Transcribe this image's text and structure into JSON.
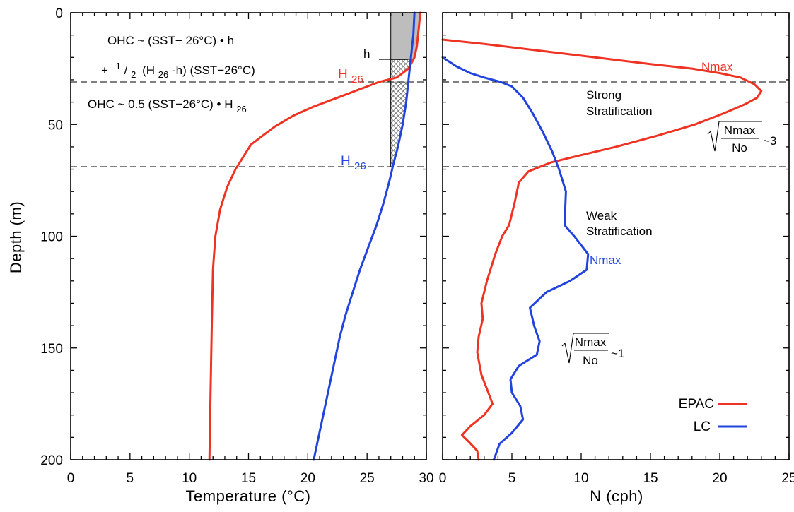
{
  "colors": {
    "epac": "#ee3322",
    "lc": "#2244dd",
    "shade": "#bdbdbd"
  },
  "chart_data": [
    {
      "type": "line",
      "xlabel": "Temperature (°C)",
      "ylabel": "Depth (m)",
      "xlim": [
        0,
        30
      ],
      "ylim": [
        200,
        0
      ],
      "y_inverted": true,
      "xticks": [
        "0",
        "5",
        "10",
        "15",
        "20",
        "25",
        "30"
      ],
      "yticks": [
        "0",
        "50",
        "100",
        "150",
        "200"
      ],
      "reference_depths": [
        31,
        69
      ],
      "h_depth": 21,
      "series": [
        {
          "name": "EPAC",
          "color": "#ee3322",
          "points": [
            [
              29.5,
              0
            ],
            [
              29.4,
              5
            ],
            [
              29.3,
              10
            ],
            [
              29.2,
              15
            ],
            [
              29.0,
              20
            ],
            [
              28.5,
              25
            ],
            [
              27.5,
              29
            ],
            [
              26.0,
              31
            ],
            [
              24.5,
              34
            ],
            [
              22.5,
              38
            ],
            [
              20.5,
              42
            ],
            [
              18.8,
              46
            ],
            [
              17.2,
              51
            ],
            [
              16.2,
              55
            ],
            [
              15.2,
              59
            ],
            [
              14.5,
              65
            ],
            [
              13.9,
              70
            ],
            [
              13.2,
              78
            ],
            [
              12.6,
              88
            ],
            [
              12.2,
              100
            ],
            [
              12.0,
              115
            ],
            [
              11.9,
              140
            ],
            [
              11.8,
              170
            ],
            [
              11.7,
              200
            ]
          ]
        },
        {
          "name": "LC",
          "color": "#2244dd",
          "points": [
            [
              29.0,
              0
            ],
            [
              28.9,
              10
            ],
            [
              28.7,
              20
            ],
            [
              28.5,
              30
            ],
            [
              28.3,
              40
            ],
            [
              28.0,
              50
            ],
            [
              27.6,
              60
            ],
            [
              27.2,
              68
            ],
            [
              26.9,
              75
            ],
            [
              26.4,
              85
            ],
            [
              25.8,
              95
            ],
            [
              25.1,
              105
            ],
            [
              24.4,
              115
            ],
            [
              23.8,
              125
            ],
            [
              23.2,
              135
            ],
            [
              22.7,
              145
            ],
            [
              22.3,
              155
            ],
            [
              21.9,
              165
            ],
            [
              21.5,
              175
            ],
            [
              21.1,
              185
            ],
            [
              20.7,
              195
            ],
            [
              20.5,
              200
            ]
          ]
        }
      ],
      "annotations": {
        "formula1": "OHC ~ (SST− 26°C) • h",
        "formula2_plus": "+",
        "formula2_num": "1",
        "formula2_den": "2",
        "formula2_rest": "(H",
        "formula2_sub": "26",
        "formula2_end": "-h)  (SST−26°C)",
        "formula3": "OHC ~ 0.5  (SST−26°C) • H",
        "formula3_sub": "26",
        "h_label": "h",
        "h26_red": "H",
        "h26_red_sub": "26",
        "h26_blue": "H",
        "h26_blue_sub": "26"
      }
    },
    {
      "type": "line",
      "xlabel": "N (cph)",
      "xlim": [
        0,
        25
      ],
      "ylim": [
        200,
        0
      ],
      "y_inverted": true,
      "xticks": [
        "0",
        "5",
        "10",
        "15",
        "20",
        "25"
      ],
      "reference_depths": [
        31,
        69
      ],
      "series": [
        {
          "name": "EPAC",
          "color": "#ee3322",
          "points": [
            [
              0,
              12
            ],
            [
              3,
              14
            ],
            [
              7,
              17
            ],
            [
              11,
              20
            ],
            [
              15,
              23
            ],
            [
              18,
              25
            ],
            [
              20,
              27
            ],
            [
              21.5,
              29
            ],
            [
              22.5,
              32
            ],
            [
              23,
              35
            ],
            [
              22.7,
              38
            ],
            [
              21.8,
              41
            ],
            [
              20.3,
              45
            ],
            [
              18.2,
              50
            ],
            [
              15.5,
              55
            ],
            [
              12.5,
              60
            ],
            [
              9.8,
              64
            ],
            [
              7.8,
              67
            ],
            [
              6.2,
              71
            ],
            [
              5.5,
              76
            ],
            [
              5.2,
              85
            ],
            [
              4.8,
              95
            ],
            [
              4.3,
              100
            ],
            [
              3.8,
              108
            ],
            [
              3.2,
              120
            ],
            [
              2.8,
              130
            ],
            [
              2.9,
              137
            ],
            [
              2.6,
              145
            ],
            [
              2.5,
              152
            ],
            [
              2.8,
              162
            ],
            [
              3.3,
              170
            ],
            [
              3.6,
              175
            ],
            [
              3.0,
              180
            ],
            [
              2.0,
              185
            ],
            [
              1.4,
              189
            ],
            [
              1.9,
              192
            ],
            [
              2.5,
              196
            ],
            [
              2.6,
              200
            ]
          ]
        },
        {
          "name": "LC",
          "color": "#2244dd",
          "points": [
            [
              0,
              20
            ],
            [
              1,
              24
            ],
            [
              2,
              27
            ],
            [
              3,
              29
            ],
            [
              4.2,
              31
            ],
            [
              5,
              33
            ],
            [
              5.8,
              38
            ],
            [
              6.5,
              45
            ],
            [
              7.2,
              53
            ],
            [
              7.9,
              62
            ],
            [
              8.4,
              70
            ],
            [
              8.9,
              80
            ],
            [
              8.8,
              95
            ],
            [
              9.5,
              100
            ],
            [
              10.5,
              108
            ],
            [
              10.4,
              115
            ],
            [
              9.2,
              120
            ],
            [
              7.5,
              125
            ],
            [
              6.3,
              132
            ],
            [
              6.6,
              140
            ],
            [
              7.0,
              147
            ],
            [
              6.8,
              153
            ],
            [
              5.5,
              158
            ],
            [
              4.9,
              164
            ],
            [
              5.0,
              170
            ],
            [
              5.6,
              176
            ],
            [
              5.8,
              182
            ],
            [
              5.0,
              188
            ],
            [
              4.1,
              193
            ],
            [
              3.7,
              200
            ]
          ]
        }
      ],
      "annotations": {
        "nmax_red": "Nmax",
        "nmax_blue": "Nmax",
        "strong1": "Strong",
        "strong2": "Stratification",
        "weak1": "Weak",
        "weak2": "Stratification",
        "ratio_num": "Nmax",
        "ratio_den": "No",
        "ratio_top": "~3",
        "ratio_bottom": "~1"
      },
      "legend": {
        "placement": "bottom-right",
        "entries": [
          "EPAC",
          "LC"
        ]
      }
    }
  ]
}
